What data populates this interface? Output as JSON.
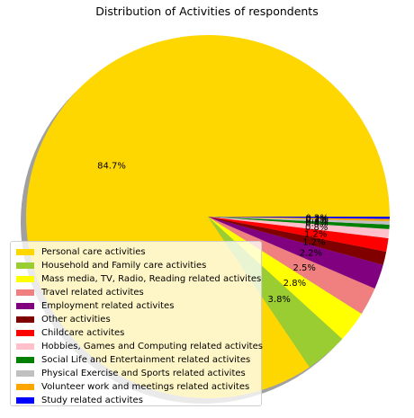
{
  "chart_data": {
    "type": "pie",
    "title": "Distribution of Activities of respondents",
    "shadow": true,
    "legend_position": "lower-left",
    "labels": [
      "Personal care activities",
      "Household and Family care activities",
      "Mass media, TV, Radio, Reading related activites",
      "Travel related activites",
      "Employment related activites",
      "Other activities",
      "Childcare activites",
      "Hobbies, Games and Computing related activites",
      "Social Life and Entertainment related activites",
      "Physical Exercise and Sports related activites",
      "Volunteer work and meetings related activites",
      "Study related activites"
    ],
    "values": [
      84.7,
      3.8,
      2.8,
      2.5,
      2.2,
      1.2,
      1.2,
      0.8,
      0.4,
      0.3,
      0.2,
      0.2
    ],
    "pct_labels": [
      "84.7%",
      "3.8%",
      "2.8%",
      "2.5%",
      "2.2%",
      "1.2%",
      "1.2%",
      "0.8%",
      "0.4%",
      "0.3%",
      "0.2%",
      "0.2%"
    ],
    "colors": [
      "#FFD700",
      "#9ACD32",
      "#FFFF00",
      "#F08080",
      "#800080",
      "#800000",
      "#FF0000",
      "#FFC0CB",
      "#008000",
      "#C0C0C0",
      "#FFA500",
      "#0000FF"
    ]
  }
}
